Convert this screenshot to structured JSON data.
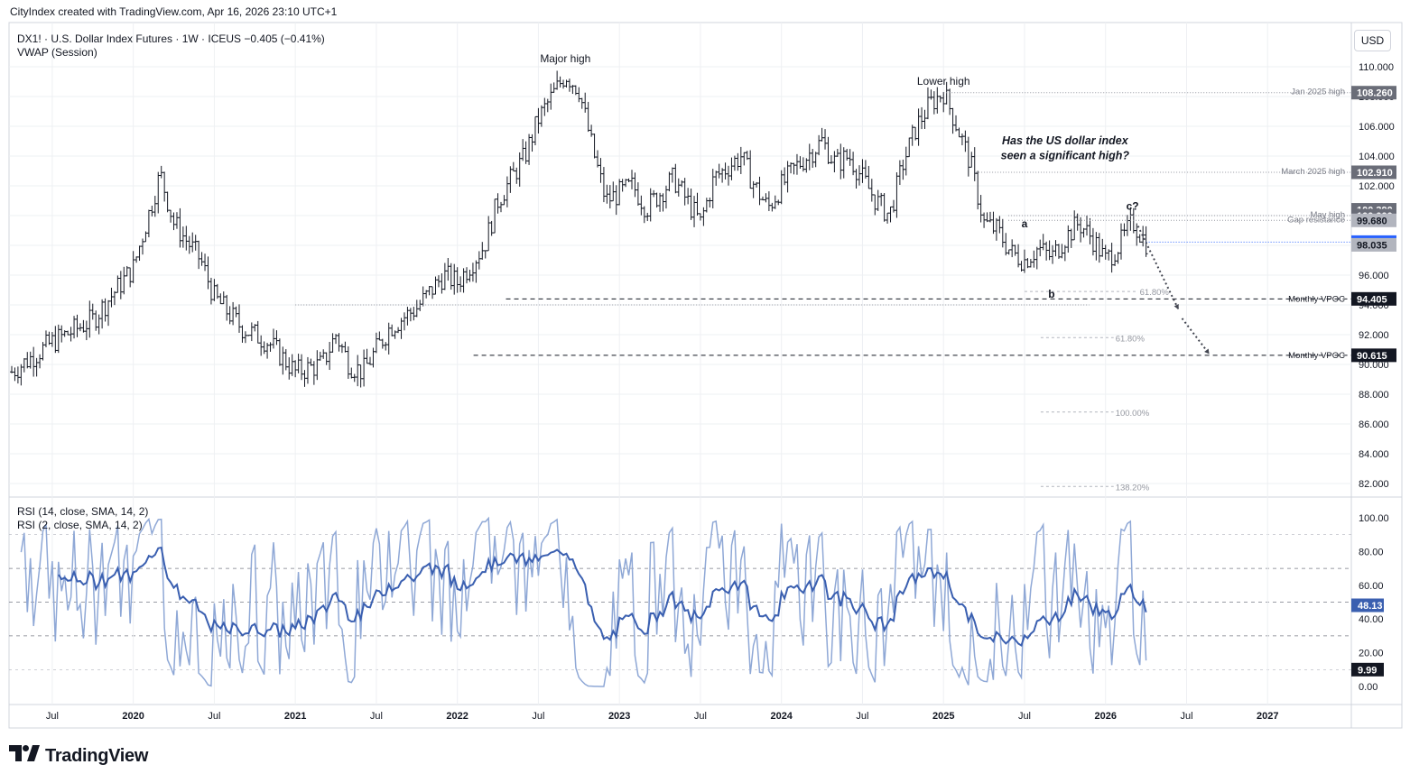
{
  "header": {
    "text": "CityIndex created with TradingView.com, Apr 16, 2026 23:10 UTC+1"
  },
  "legend": {
    "line1": "DX1! · U.S. Dollar Index Futures · 1W · ICEUS  −0.405 (−0.41%)",
    "line2": "VWAP (Session)",
    "rsi1": "RSI (14, close, SMA, 14, 2)",
    "rsi2": "RSI (2, close, SMA, 14, 2)"
  },
  "currency_label": "USD",
  "brand": {
    "name": "TradingView",
    "logo_text": "TV"
  },
  "colors": {
    "candle": "#131722",
    "rsi14": "#3a5fb0",
    "rsi2": "#8fa8d6",
    "grid": "#eef0f3",
    "dotted": "#9598a1",
    "dashed": "#131722",
    "badge_dark": "#131722",
    "badge_grey": "#6a6d78",
    "badge_blue": "#2962ff",
    "badge_light": "#b2b5be",
    "fib": "#b2b5be"
  },
  "chart_data": [
    {
      "type": "candlestick",
      "title": "DX1! · U.S. Dollar Index Futures · 1W · ICEUS",
      "ylim": [
        81,
        111
      ],
      "y_ticks": [
        "110.000",
        "108.000",
        "106.000",
        "104.000",
        "102.000",
        "100.000",
        "98.000",
        "96.000",
        "94.000",
        "92.000",
        "90.000",
        "88.000",
        "86.000",
        "84.000",
        "82.000"
      ],
      "x_ticks": [
        "Jul",
        "2020",
        "Jul",
        "2021",
        "Jul",
        "2022",
        "Jul",
        "2023",
        "Jul",
        "2024",
        "Jul",
        "2025",
        "Jul",
        "2026",
        "Jul",
        "2027"
      ],
      "price_path": [
        [
          "2019-04",
          89.5
        ],
        [
          "2019-07",
          91.5
        ],
        [
          "2019-10",
          93.0
        ],
        [
          "2020-01",
          96.5
        ],
        [
          "2020-03",
          102.8
        ],
        [
          "2020-04",
          99.5
        ],
        [
          "2020-06",
          97.0
        ],
        [
          "2020-07",
          94.5
        ],
        [
          "2020-09",
          92.5
        ],
        [
          "2020-11",
          91.5
        ],
        [
          "2021-01",
          89.5
        ],
        [
          "2021-03",
          90.0
        ],
        [
          "2021-04",
          92.0
        ],
        [
          "2021-05",
          90.0
        ],
        [
          "2021-06",
          89.5
        ],
        [
          "2021-08",
          92.5
        ],
        [
          "2021-10",
          93.8
        ],
        [
          "2021-12",
          96.0
        ],
        [
          "2022-01",
          95.5
        ],
        [
          "2022-03",
          98.0
        ],
        [
          "2022-04",
          101.0
        ],
        [
          "2022-06",
          104.0
        ],
        [
          "2022-07",
          106.5
        ],
        [
          "2022-09",
          109.5
        ],
        [
          "2022-10",
          108.5
        ],
        [
          "2022-11",
          104.5
        ],
        [
          "2022-12",
          101.0
        ],
        [
          "2023-01",
          101.5
        ],
        [
          "2023-02",
          102.0
        ],
        [
          "2023-03",
          100.5
        ],
        [
          "2023-04",
          101.5
        ],
        [
          "2023-05",
          102.5
        ],
        [
          "2023-07",
          99.5
        ],
        [
          "2023-08",
          102.5
        ],
        [
          "2023-10",
          104.0
        ],
        [
          "2023-11",
          102.0
        ],
        [
          "2023-12",
          100.5
        ],
        [
          "2024-01",
          102.0
        ],
        [
          "2024-02",
          103.2
        ],
        [
          "2024-04",
          105.0
        ],
        [
          "2024-05",
          103.5
        ],
        [
          "2024-06",
          104.0
        ],
        [
          "2024-08",
          101.0
        ],
        [
          "2024-09",
          100.0
        ],
        [
          "2024-10",
          103.5
        ],
        [
          "2024-11",
          106.0
        ],
        [
          "2024-12",
          107.5
        ],
        [
          "2025-01",
          108.3
        ],
        [
          "2025-02",
          106.0
        ],
        [
          "2025-03",
          103.5
        ],
        [
          "2025-04",
          99.5
        ],
        [
          "2025-05",
          99.0
        ],
        [
          "2025-06",
          97.5
        ],
        [
          "2025-07",
          97.0
        ],
        [
          "2025-08",
          97.8
        ],
        [
          "2025-09",
          97.2
        ],
        [
          "2025-10",
          98.5
        ],
        [
          "2025-11",
          99.5
        ],
        [
          "2025-12",
          98.5
        ],
        [
          "2026-01",
          97.0
        ],
        [
          "2026-02",
          98.0
        ],
        [
          "2026-03",
          99.6
        ],
        [
          "2026-04",
          98.2
        ]
      ],
      "annotations": [
        {
          "text": "Major high",
          "x": "2022-09",
          "y": 110.3
        },
        {
          "text": "Lower high",
          "x": "2025-01",
          "y": 108.8
        },
        {
          "text": "a",
          "x": "2025-07",
          "y": 99.2
        },
        {
          "text": "b",
          "x": "2025-09",
          "y": 94.5
        },
        {
          "text": "c?",
          "x": "2026-03",
          "y": 100.4
        },
        {
          "text": "Has the US dollar index",
          "x": "2025-10",
          "y": 104.8
        },
        {
          "text": "seen a significant high?",
          "x": "2025-10",
          "y": 103.8
        }
      ],
      "levels": [
        {
          "label": "Jan 2025 high",
          "value": 108.26,
          "badge": "108.260",
          "style": "dotted"
        },
        {
          "label": "March 2025 high",
          "value": 102.91,
          "badge": "102.910",
          "style": "dotted"
        },
        {
          "label": "",
          "value": 100.39,
          "badge": "100.390",
          "style": "none"
        },
        {
          "label": "May high",
          "value": 100.0,
          "badge": "100.000",
          "style": "dotted"
        },
        {
          "label": "Gap resistance",
          "value": 99.68,
          "badge": "99.680",
          "style": "dotted"
        },
        {
          "label": "",
          "value": 98.218,
          "badge": "98.218",
          "style": "current"
        },
        {
          "label": "",
          "value": 98.035,
          "badge": "98.035",
          "style": "none"
        },
        {
          "label": "Monthly VPOC",
          "value": 94.405,
          "badge": "94.405",
          "style": "dashed"
        },
        {
          "label": "Monthly VPOC",
          "value": 90.615,
          "badge": "90.615",
          "style": "dashed"
        }
      ],
      "fib_levels": [
        {
          "label": "61.80%",
          "value": 94.9
        },
        {
          "label": "61.80%",
          "value": 91.8
        },
        {
          "label": "100.00%",
          "value": 86.8
        },
        {
          "label": "138.20%",
          "value": 81.8
        }
      ]
    },
    {
      "type": "line",
      "title": "RSI",
      "ylim": [
        -1,
        104
      ],
      "y_ticks": [
        "100.00",
        "80.00",
        "60.00",
        "40.00",
        "20.00",
        "0.00"
      ],
      "bands": [
        30,
        50,
        70
      ],
      "series": [
        {
          "name": "RSI (14, close, SMA, 14, 2)",
          "last": 48.13,
          "badge": "48.13"
        },
        {
          "name": "RSI (2, close, SMA, 14, 2)",
          "last": 9.99,
          "badge": "9.99"
        }
      ]
    }
  ]
}
